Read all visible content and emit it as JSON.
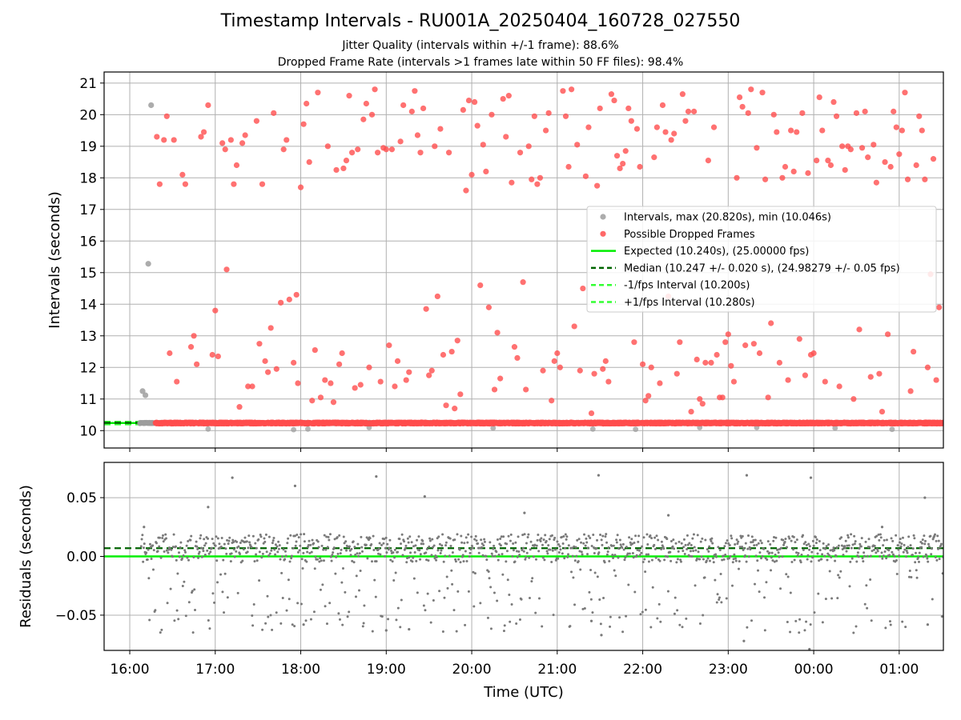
{
  "figure": {
    "title": "Timestamp Intervals - RU001A_20250404_160728_027550",
    "subtitle_1": "Jitter Quality (intervals within +/-1 frame): 88.6%",
    "subtitle_2": "Dropped Frame Rate (intervals >1 frames late within 50 FF files): 98.4%"
  },
  "colors": {
    "intervals": "#9e9e9e",
    "dropped": "#ff4d4d",
    "expected": "#00ee00",
    "median": "#006400",
    "bounds": "#33ff33",
    "residuals": "#7a7a7a",
    "grid": "#b0b0b0"
  },
  "chart_data": [
    {
      "type": "scatter",
      "panel": "top",
      "xlabel": "",
      "ylabel": "Intervals (seconds)",
      "xlim": [
        "15:42",
        "01:31"
      ],
      "ylim": [
        9.45,
        21.35
      ],
      "yticks": [
        10,
        11,
        12,
        13,
        14,
        15,
        16,
        17,
        18,
        19,
        20,
        21
      ],
      "grid": true,
      "legend_position": "center-right",
      "legend": [
        "Intervals, max (20.820s), min (10.046s)",
        "Possible Dropped Frames",
        "Expected (10.240s), (25.00000 fps)",
        "Median (10.247 +/- 0.020 s), (24.98279 +/- 0.05 fps)",
        "-1/fps Interval (10.200s)",
        "+1/fps Interval (10.280s)"
      ],
      "reference_lines": {
        "expected": 10.24,
        "median": 10.247,
        "minus_1_fps": 10.2,
        "plus_1_fps": 10.28
      },
      "intervals_summary": {
        "max": 20.82,
        "min": 10.046,
        "baseline": 10.24,
        "first_sample_time": "16:07"
      },
      "intervals_extra": [
        [
          "16:09",
          11.25
        ],
        [
          "16:11",
          11.12
        ],
        [
          "16:13",
          15.28
        ],
        [
          "16:15",
          20.3
        ]
      ],
      "dropped_summary": {
        "first_sample_time": "16:18",
        "baseline": 10.24
      },
      "dropped_points": [
        [
          "16:19",
          19.3
        ],
        [
          "16:21",
          17.8
        ],
        [
          "16:24",
          19.2
        ],
        [
          "16:26",
          19.95
        ],
        [
          "16:28",
          12.45
        ],
        [
          "16:31",
          19.2
        ],
        [
          "16:33",
          11.55
        ],
        [
          "16:37",
          18.1
        ],
        [
          "16:39",
          17.8
        ],
        [
          "16:43",
          12.65
        ],
        [
          "16:45",
          13.0
        ],
        [
          "16:47",
          12.1
        ],
        [
          "16:50",
          19.3
        ],
        [
          "16:52",
          19.45
        ],
        [
          "16:55",
          20.3
        ],
        [
          "16:58",
          12.4
        ],
        [
          "17:00",
          13.8
        ],
        [
          "17:02",
          12.35
        ],
        [
          "17:05",
          19.1
        ],
        [
          "17:07",
          18.9
        ],
        [
          "17:08",
          15.1
        ],
        [
          "17:11",
          19.2
        ],
        [
          "17:13",
          17.8
        ],
        [
          "17:15",
          18.4
        ],
        [
          "17:17",
          10.75
        ],
        [
          "17:19",
          19.1
        ],
        [
          "17:21",
          19.35
        ],
        [
          "17:23",
          11.4
        ],
        [
          "17:26",
          11.4
        ],
        [
          "17:29",
          19.8
        ],
        [
          "17:31",
          12.75
        ],
        [
          "17:33",
          17.8
        ],
        [
          "17:35",
          12.2
        ],
        [
          "17:37",
          11.85
        ],
        [
          "17:39",
          13.25
        ],
        [
          "17:41",
          20.05
        ],
        [
          "17:43",
          11.95
        ],
        [
          "17:46",
          14.05
        ],
        [
          "17:48",
          18.9
        ],
        [
          "17:50",
          19.2
        ],
        [
          "17:52",
          14.15
        ],
        [
          "17:55",
          12.15
        ],
        [
          "17:57",
          14.3
        ],
        [
          "17:58",
          11.5
        ],
        [
          "18:00",
          17.7
        ],
        [
          "18:02",
          19.7
        ],
        [
          "18:04",
          20.35
        ],
        [
          "18:06",
          18.5
        ],
        [
          "18:08",
          10.95
        ],
        [
          "18:10",
          12.55
        ],
        [
          "18:12",
          20.7
        ],
        [
          "18:14",
          11.05
        ],
        [
          "18:17",
          11.6
        ],
        [
          "18:19",
          19.0
        ],
        [
          "18:21",
          11.5
        ],
        [
          "18:23",
          10.9
        ],
        [
          "18:25",
          18.25
        ],
        [
          "18:27",
          12.1
        ],
        [
          "18:29",
          12.45
        ],
        [
          "18:30",
          18.3
        ],
        [
          "18:32",
          18.55
        ],
        [
          "18:34",
          20.6
        ],
        [
          "18:36",
          18.8
        ],
        [
          "18:38",
          11.35
        ],
        [
          "18:40",
          18.9
        ],
        [
          "18:42",
          11.45
        ],
        [
          "18:44",
          19.85
        ],
        [
          "18:46",
          20.35
        ],
        [
          "18:48",
          12.0
        ],
        [
          "18:50",
          20.0
        ],
        [
          "18:52",
          20.8
        ],
        [
          "18:54",
          18.8
        ],
        [
          "18:56",
          11.55
        ],
        [
          "18:58",
          18.95
        ],
        [
          "19:00",
          18.9
        ],
        [
          "19:02",
          12.7
        ],
        [
          "19:04",
          18.9
        ],
        [
          "19:06",
          11.4
        ],
        [
          "19:08",
          12.2
        ],
        [
          "19:10",
          19.15
        ],
        [
          "19:12",
          20.3
        ],
        [
          "19:14",
          11.6
        ],
        [
          "19:16",
          11.85
        ],
        [
          "19:18",
          20.1
        ],
        [
          "19:20",
          20.75
        ],
        [
          "19:22",
          19.35
        ],
        [
          "19:24",
          18.8
        ],
        [
          "19:26",
          20.2
        ],
        [
          "19:28",
          13.85
        ],
        [
          "19:30",
          11.75
        ],
        [
          "19:32",
          11.9
        ],
        [
          "19:34",
          19.0
        ],
        [
          "19:36",
          14.25
        ],
        [
          "19:38",
          19.55
        ],
        [
          "19:40",
          12.4
        ],
        [
          "19:42",
          10.8
        ],
        [
          "19:44",
          18.8
        ],
        [
          "19:46",
          12.5
        ],
        [
          "19:48",
          10.7
        ],
        [
          "19:50",
          12.85
        ],
        [
          "19:52",
          11.15
        ],
        [
          "19:54",
          20.15
        ],
        [
          "19:56",
          17.6
        ],
        [
          "19:58",
          20.45
        ],
        [
          "20:00",
          18.1
        ],
        [
          "20:02",
          20.4
        ],
        [
          "20:04",
          19.65
        ],
        [
          "20:06",
          14.6
        ],
        [
          "20:08",
          19.05
        ],
        [
          "20:10",
          18.2
        ],
        [
          "20:12",
          13.9
        ],
        [
          "20:14",
          20.0
        ],
        [
          "20:16",
          11.3
        ],
        [
          "20:18",
          13.1
        ],
        [
          "20:20",
          11.65
        ],
        [
          "20:22",
          20.5
        ],
        [
          "20:24",
          19.3
        ],
        [
          "20:26",
          20.6
        ],
        [
          "20:28",
          17.85
        ],
        [
          "20:30",
          12.65
        ],
        [
          "20:32",
          12.3
        ],
        [
          "20:34",
          18.8
        ],
        [
          "20:36",
          14.7
        ],
        [
          "20:38",
          11.3
        ],
        [
          "20:40",
          19.0
        ],
        [
          "20:42",
          17.95
        ],
        [
          "20:44",
          19.95
        ],
        [
          "20:46",
          17.8
        ],
        [
          "20:48",
          18.0
        ],
        [
          "20:50",
          11.9
        ],
        [
          "20:52",
          19.5
        ],
        [
          "20:54",
          20.05
        ],
        [
          "20:56",
          10.95
        ],
        [
          "20:58",
          12.2
        ],
        [
          "21:00",
          12.45
        ],
        [
          "21:02",
          12.0
        ],
        [
          "21:04",
          20.75
        ],
        [
          "21:06",
          19.95
        ],
        [
          "21:08",
          18.35
        ],
        [
          "21:10",
          20.8
        ],
        [
          "21:12",
          13.3
        ],
        [
          "21:14",
          19.05
        ],
        [
          "21:16",
          11.9
        ],
        [
          "21:18",
          14.5
        ],
        [
          "21:20",
          18.05
        ],
        [
          "21:22",
          19.6
        ],
        [
          "21:24",
          10.55
        ],
        [
          "21:26",
          11.8
        ],
        [
          "21:28",
          17.75
        ],
        [
          "21:30",
          20.2
        ],
        [
          "21:32",
          11.95
        ],
        [
          "21:34",
          12.2
        ],
        [
          "21:36",
          11.55
        ],
        [
          "21:38",
          20.65
        ],
        [
          "21:40",
          20.45
        ],
        [
          "21:42",
          18.7
        ],
        [
          "21:44",
          18.3
        ],
        [
          "21:46",
          18.45
        ],
        [
          "21:48",
          18.85
        ],
        [
          "21:50",
          20.2
        ],
        [
          "21:52",
          19.8
        ],
        [
          "21:54",
          12.8
        ],
        [
          "21:56",
          19.55
        ],
        [
          "21:58",
          18.35
        ],
        [
          "22:00",
          12.1
        ],
        [
          "22:02",
          10.95
        ],
        [
          "22:04",
          11.1
        ],
        [
          "22:06",
          12.0
        ],
        [
          "22:08",
          18.65
        ],
        [
          "22:10",
          19.6
        ],
        [
          "22:12",
          11.5
        ],
        [
          "22:14",
          20.3
        ],
        [
          "22:16",
          19.45
        ],
        [
          "22:18",
          14.25
        ],
        [
          "22:20",
          19.2
        ],
        [
          "22:22",
          19.4
        ],
        [
          "22:24",
          11.8
        ],
        [
          "22:26",
          12.8
        ],
        [
          "22:28",
          20.65
        ],
        [
          "22:30",
          19.8
        ],
        [
          "22:32",
          20.1
        ],
        [
          "22:34",
          10.6
        ],
        [
          "22:36",
          20.1
        ],
        [
          "22:38",
          12.25
        ],
        [
          "22:40",
          11.0
        ],
        [
          "22:42",
          10.85
        ],
        [
          "22:44",
          12.15
        ],
        [
          "22:46",
          18.55
        ],
        [
          "22:48",
          12.15
        ],
        [
          "22:50",
          19.6
        ],
        [
          "22:52",
          12.4
        ],
        [
          "22:54",
          11.05
        ],
        [
          "22:56",
          11.05
        ],
        [
          "22:58",
          12.8
        ],
        [
          "23:00",
          13.05
        ],
        [
          "23:02",
          12.05
        ],
        [
          "23:04",
          11.55
        ],
        [
          "23:06",
          18.0
        ],
        [
          "23:08",
          20.55
        ],
        [
          "23:10",
          20.25
        ],
        [
          "23:12",
          12.7
        ],
        [
          "23:14",
          20.05
        ],
        [
          "23:16",
          20.8
        ],
        [
          "23:18",
          12.75
        ],
        [
          "23:20",
          18.95
        ],
        [
          "23:22",
          12.45
        ],
        [
          "23:24",
          20.7
        ],
        [
          "23:26",
          17.95
        ],
        [
          "23:28",
          11.05
        ],
        [
          "23:30",
          13.4
        ],
        [
          "23:32",
          20.0
        ],
        [
          "23:34",
          19.45
        ],
        [
          "23:36",
          12.15
        ],
        [
          "23:38",
          18.0
        ],
        [
          "23:40",
          18.35
        ],
        [
          "23:42",
          11.6
        ],
        [
          "23:44",
          19.5
        ],
        [
          "23:46",
          18.2
        ],
        [
          "23:48",
          19.45
        ],
        [
          "23:50",
          12.9
        ],
        [
          "23:52",
          20.05
        ],
        [
          "23:54",
          11.75
        ],
        [
          "23:56",
          18.15
        ],
        [
          "23:58",
          12.4
        ],
        [
          "00:00",
          12.45
        ],
        [
          "00:02",
          18.55
        ],
        [
          "00:04",
          20.55
        ],
        [
          "00:06",
          19.5
        ],
        [
          "00:08",
          11.55
        ],
        [
          "00:10",
          18.55
        ],
        [
          "00:12",
          18.4
        ],
        [
          "00:14",
          20.4
        ],
        [
          "00:16",
          19.95
        ],
        [
          "00:18",
          11.4
        ],
        [
          "00:20",
          19.0
        ],
        [
          "00:22",
          18.25
        ],
        [
          "00:24",
          19.0
        ],
        [
          "00:26",
          18.9
        ],
        [
          "00:28",
          11.0
        ],
        [
          "00:30",
          20.05
        ],
        [
          "00:32",
          13.2
        ],
        [
          "00:34",
          18.95
        ],
        [
          "00:36",
          20.1
        ],
        [
          "00:38",
          18.65
        ],
        [
          "00:40",
          11.7
        ],
        [
          "00:42",
          19.05
        ],
        [
          "00:44",
          17.85
        ],
        [
          "00:46",
          11.8
        ],
        [
          "00:48",
          10.6
        ],
        [
          "00:50",
          18.5
        ],
        [
          "00:52",
          13.05
        ],
        [
          "00:54",
          18.35
        ],
        [
          "00:56",
          20.1
        ],
        [
          "00:58",
          19.6
        ],
        [
          "01:00",
          18.75
        ],
        [
          "01:02",
          19.5
        ],
        [
          "01:04",
          20.7
        ],
        [
          "01:06",
          17.95
        ],
        [
          "01:08",
          11.25
        ],
        [
          "01:10",
          12.5
        ],
        [
          "01:12",
          18.4
        ],
        [
          "01:14",
          19.95
        ],
        [
          "01:16",
          19.5
        ],
        [
          "01:18",
          17.95
        ],
        [
          "01:20",
          12.0
        ],
        [
          "01:22",
          14.95
        ],
        [
          "01:24",
          18.6
        ],
        [
          "01:26",
          11.6
        ],
        [
          "01:28",
          13.9
        ]
      ]
    },
    {
      "type": "scatter",
      "panel": "bottom",
      "xlabel": "Time (UTC)",
      "ylabel": "Residuals (seconds)",
      "xlim": [
        "15:42",
        "01:31"
      ],
      "ylim": [
        -0.08,
        0.08
      ],
      "yticks": [
        0.05,
        0.0,
        -0.05
      ],
      "ytick_labels": [
        "0.05",
        "0.00",
        "−0.05"
      ],
      "xticks": [
        "16:00",
        "17:00",
        "18:00",
        "19:00",
        "20:00",
        "21:00",
        "22:00",
        "23:00",
        "00:00",
        "01:00"
      ],
      "grid": true,
      "reference_lines": {
        "zero": 0.0,
        "median_offset": 0.007
      },
      "residual_summary": {
        "bulk_center": 0.007,
        "bulk_spread": 0.012,
        "outlier_rate": 0.18,
        "outlier_range": [
          -0.065,
          -0.01
        ]
      },
      "residual_outliers": [
        [
          "16:10",
          0.025
        ],
        [
          "16:55",
          0.042
        ],
        [
          "17:12",
          0.067
        ],
        [
          "17:56",
          0.06
        ],
        [
          "18:02",
          -0.058
        ],
        [
          "18:53",
          0.068
        ],
        [
          "19:00",
          -0.063
        ],
        [
          "19:16",
          -0.062
        ],
        [
          "19:27",
          0.051
        ],
        [
          "20:37",
          0.037
        ],
        [
          "21:24",
          -0.055
        ],
        [
          "21:29",
          0.069
        ],
        [
          "21:31",
          -0.067
        ],
        [
          "22:18",
          0.035
        ],
        [
          "23:11",
          -0.072
        ],
        [
          "23:13",
          0.069
        ],
        [
          "23:57",
          -0.079
        ],
        [
          "23:58",
          0.067
        ],
        [
          "01:18",
          0.05
        ],
        [
          "01:20",
          -0.058
        ],
        [
          "00:48",
          0.025
        ]
      ]
    }
  ]
}
